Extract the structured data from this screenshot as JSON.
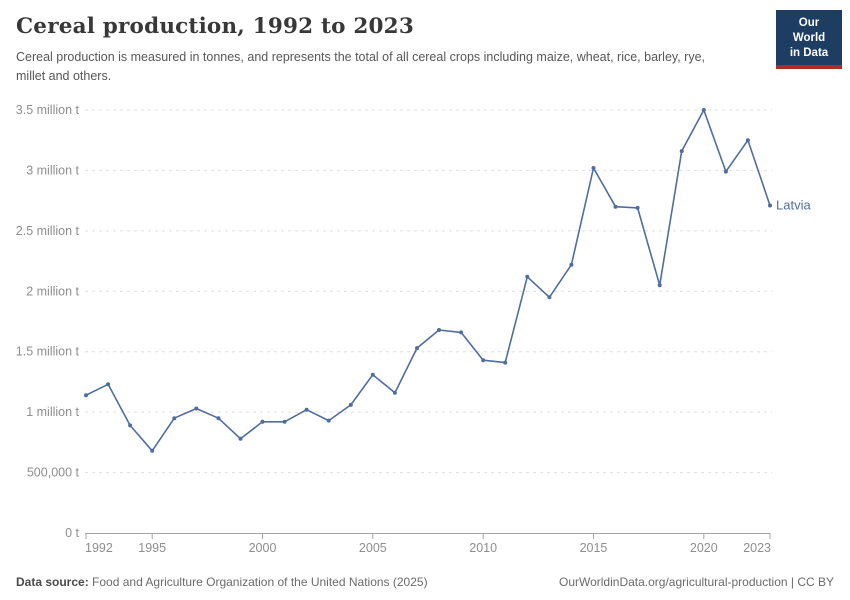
{
  "header": {
    "title": "Cereal production, 1992 to 2023",
    "subtitle": "Cereal production is measured in tonnes, and represents the total of all cereal crops including maize, wheat, rice, barley, rye, millet and others.",
    "logo_line1": "Our World",
    "logo_line2": "in Data"
  },
  "chart_data": {
    "type": "line",
    "title": "Cereal production, 1992 to 2023",
    "unit": "tonnes",
    "entity_label": "Latvia",
    "x": [
      1992,
      1993,
      1994,
      1995,
      1996,
      1997,
      1998,
      1999,
      2000,
      2001,
      2002,
      2003,
      2004,
      2005,
      2006,
      2007,
      2008,
      2009,
      2010,
      2011,
      2012,
      2013,
      2014,
      2015,
      2016,
      2017,
      2018,
      2019,
      2020,
      2021,
      2022,
      2023
    ],
    "series": [
      {
        "name": "Latvia",
        "values_million_tonnes": [
          1.14,
          1.23,
          0.89,
          0.68,
          0.95,
          1.03,
          0.95,
          0.78,
          0.92,
          0.92,
          1.02,
          0.93,
          1.06,
          1.31,
          1.16,
          1.53,
          1.68,
          1.66,
          1.43,
          1.41,
          2.12,
          1.95,
          2.22,
          3.02,
          2.7,
          2.69,
          2.05,
          3.16,
          3.5,
          2.99,
          3.25,
          2.71
        ]
      }
    ],
    "xlim": [
      1992,
      2023
    ],
    "ylim": [
      0,
      3.5
    ],
    "grid": true,
    "legend_position": "end-of-line",
    "x_ticks": [
      1992,
      1995,
      2000,
      2005,
      2010,
      2015,
      2020,
      2023
    ],
    "y_ticks": [
      {
        "value": 0,
        "label": "0 t"
      },
      {
        "value": 0.5,
        "label": "500,000 t"
      },
      {
        "value": 1,
        "label": "1 million t"
      },
      {
        "value": 1.5,
        "label": "1.5 million t"
      },
      {
        "value": 2,
        "label": "2 million t"
      },
      {
        "value": 2.5,
        "label": "2.5 million t"
      },
      {
        "value": 3,
        "label": "3 million t"
      },
      {
        "value": 3.5,
        "label": "3.5 million t"
      }
    ],
    "colors": {
      "line": "#4f6d9f",
      "axis_text": "#8e8e8e",
      "gridline": "#dedede",
      "axis_line": "#a3a3a3"
    }
  },
  "footer": {
    "source_label": "Data source:",
    "source_value": " Food and Agriculture Organization of the United Nations (2025)",
    "right_text": "OurWorldinData.org/agricultural-production | CC BY"
  }
}
